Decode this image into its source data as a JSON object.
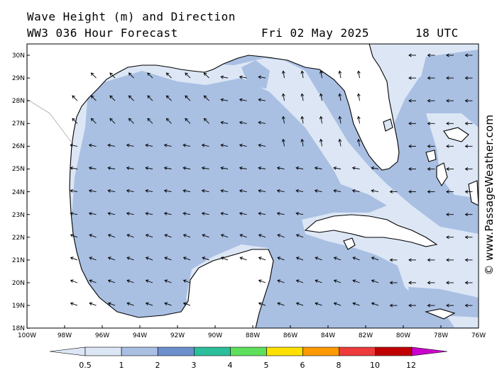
{
  "header": {
    "title": "Wave Height (m) and Direction",
    "model": "WW3 036 Hour Forecast",
    "date": "Fri 02 May 2025",
    "time": "18 UTC"
  },
  "credit": "© www.PassageWeather.com",
  "axes": {
    "lat_labels": [
      "30N",
      "29N",
      "28N",
      "27N",
      "26N",
      "25N",
      "24N",
      "23N",
      "22N",
      "21N",
      "20N",
      "19N",
      "18N"
    ],
    "lon_labels": [
      "100W",
      "98W",
      "96W",
      "94W",
      "92W",
      "90W",
      "88W",
      "86W",
      "84W",
      "82W",
      "80W",
      "78W",
      "76W"
    ]
  },
  "legend": {
    "tick_labels": [
      "0.5",
      "1",
      "2",
      "3",
      "4",
      "5",
      "6",
      "8",
      "10",
      "12"
    ],
    "colors": [
      "#dce6f5",
      "#a9c0e3",
      "#6d8fcc",
      "#2cbf9c",
      "#5ee05e",
      "#ffe100",
      "#ff9a00",
      "#ee3b3b",
      "#c00000",
      "#cc00cc"
    ]
  },
  "map_colors": {
    "land": "#ffffff",
    "band_lt_05": "#ffffff",
    "band_05_1": "#dce6f5",
    "band_1_2": "#a9c0e3",
    "coastline": "#000000"
  }
}
